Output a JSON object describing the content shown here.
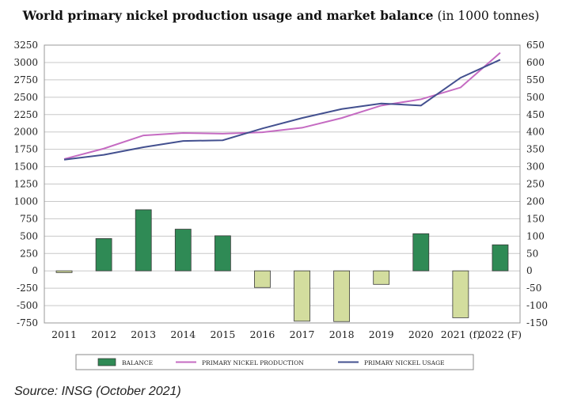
{
  "title_bold": "World primary nickel production usage and market balance",
  "title_light": "(in 1000 tonnes)",
  "source": "Source: INSG (October 2021)",
  "chart_data": {
    "type": "bar+line",
    "title": "World primary nickel production usage and market balance (in 1000 tonnes)",
    "categories": [
      "2011",
      "2012",
      "2013",
      "2014",
      "2015",
      "2016",
      "2017",
      "2018",
      "2019",
      "2020",
      "2021 (f)",
      "2022 (F)"
    ],
    "left_axis": {
      "ylim": [
        -750,
        3250
      ],
      "ticks": [
        "3250",
        "3000",
        "2750",
        "2500",
        "2250",
        "2000",
        "1750",
        "1500",
        "1250",
        "1000",
        "750",
        "500",
        "250",
        "0",
        "-250",
        "-500",
        "-750"
      ]
    },
    "right_axis": {
      "ylim": [
        -150,
        650
      ],
      "ticks": [
        "650",
        "600",
        "550",
        "500",
        "450",
        "400",
        "350",
        "300",
        "250",
        "200",
        "150",
        "100",
        "50",
        "0",
        "-50",
        "-100",
        "-150"
      ]
    },
    "series": [
      {
        "name": "BALANCE",
        "kind": "bar",
        "axis": "right",
        "values": [
          -5,
          93,
          176,
          120,
          101,
          -48,
          -145,
          -146,
          -39,
          107,
          -135,
          75
        ]
      },
      {
        "name": "PRIMARY NICKEL PRODUCTION",
        "kind": "line",
        "axis": "left",
        "values": [
          1610,
          1760,
          1950,
          1985,
          1975,
          1995,
          2060,
          2200,
          2380,
          2470,
          2640,
          3140
        ]
      },
      {
        "name": "PRIMARY NICKEL USAGE",
        "kind": "line",
        "axis": "left",
        "values": [
          1600,
          1670,
          1780,
          1870,
          1880,
          2050,
          2200,
          2330,
          2410,
          2380,
          2780,
          3040
        ]
      }
    ],
    "legend": [
      "BALANCE",
      "PRIMARY NICKEL PRODUCTION",
      "PRIMARY NICKEL USAGE"
    ],
    "legend_position": "bottom",
    "grid": true,
    "colors": {
      "bar_positive": "#2f8a55",
      "bar_negative": "#d3dd9e",
      "production": "#c56bc2",
      "usage": "#43508f",
      "grid": "#c8c8c8"
    }
  }
}
